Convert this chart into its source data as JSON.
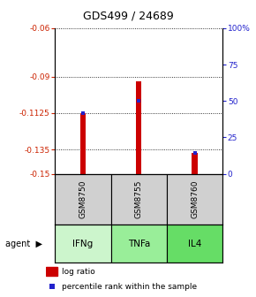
{
  "title": "GDS499 / 24689",
  "samples": [
    "GSM8750",
    "GSM8755",
    "GSM8760"
  ],
  "agents": [
    "IFNg",
    "TNFa",
    "IL4"
  ],
  "bar_bottom": -0.15,
  "bar_tops": [
    -0.1125,
    -0.093,
    -0.137
  ],
  "percentile_values": [
    -0.1125,
    -0.105,
    -0.137
  ],
  "ylim_left": [
    -0.15,
    -0.06
  ],
  "ylim_right": [
    0,
    100
  ],
  "yticks_left": [
    -0.15,
    -0.135,
    -0.1125,
    -0.09,
    -0.06
  ],
  "ytick_labels_left": [
    "-0.15",
    "-0.135",
    "-0.1125",
    "-0.09",
    "-0.06"
  ],
  "yticks_right": [
    0,
    25,
    50,
    75,
    100
  ],
  "ytick_labels_right": [
    "0",
    "25",
    "50",
    "75",
    "100%"
  ],
  "bar_color": "#cc0000",
  "blue_square_color": "#2222cc",
  "left_axis_color": "#cc2200",
  "right_axis_color": "#2222cc",
  "bg_color": "#ffffff",
  "sample_box_color": "#d0d0d0",
  "agent_bg_colors": [
    "#ccf5cc",
    "#99ee99",
    "#66dd66"
  ],
  "bar_width": 0.1,
  "legend_square_red": "#cc0000",
  "legend_square_blue": "#2222cc"
}
